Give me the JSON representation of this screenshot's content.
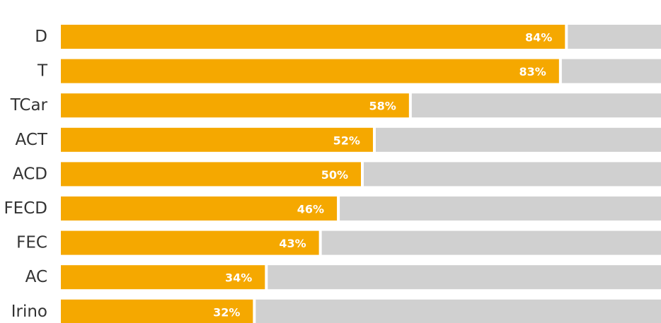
{
  "chart_data": {
    "type": "bar",
    "orientation": "horizontal",
    "stacked_remainder": true,
    "categories": [
      "D",
      "T",
      "TCar",
      "ACT",
      "ACD",
      "FECD",
      "FEC",
      "AC",
      "Irino"
    ],
    "series": [
      {
        "values": [
          84,
          83,
          58,
          52,
          50,
          46,
          43,
          34,
          32
        ]
      }
    ],
    "value_labels": [
      "84%",
      "83%",
      "58%",
      "52%",
      "50%",
      "46%",
      "43%",
      "34%",
      "32%"
    ],
    "xlim": [
      0,
      100
    ],
    "title": "",
    "xlabel": "",
    "ylabel": "",
    "grid": false,
    "legend": "none",
    "colors": {
      "bar": "#f5a800",
      "remainder": "#d0d0d0",
      "value_label": "#ffffff",
      "category_label": "#333333"
    }
  }
}
